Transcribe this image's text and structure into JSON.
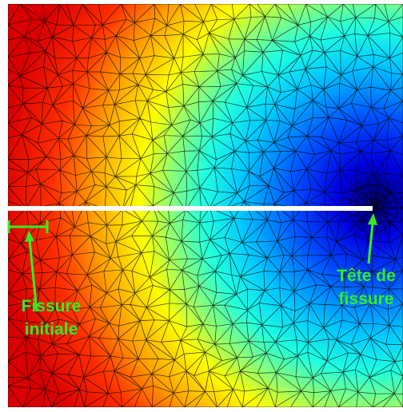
{
  "annotations": {
    "crack_initial": {
      "lines": [
        "Fissure",
        "initiale"
      ]
    },
    "crack_tip": {
      "lines": [
        "Tête de",
        "fissure"
      ]
    }
  }
}
